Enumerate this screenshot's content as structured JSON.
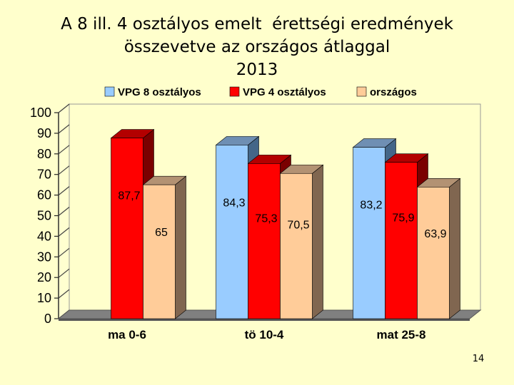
{
  "slide": {
    "title_lines": [
      "A 8 ill. 4 osztályos emelt  érettségi eredmények",
      "összevetve az országos átlaggal",
      "2013"
    ],
    "page_number": "14"
  },
  "chart_data": {
    "type": "bar",
    "categories": [
      "ma 0-6",
      "tö 10-4",
      "mat 25-8"
    ],
    "series": [
      {
        "name": "VPG 8 osztályos",
        "values": [
          null,
          84.3,
          83.2
        ],
        "labels": [
          "",
          "84,3",
          "83,2"
        ],
        "color": "#99ccff",
        "side": "#446688",
        "top": "#6f8fb3"
      },
      {
        "name": "VPG 4 osztályos",
        "values": [
          87.7,
          75.3,
          75.9
        ],
        "labels": [
          "87,7",
          "75,3",
          "75,9"
        ],
        "color": "#ff0000",
        "side": "#7a0000",
        "top": "#b30000"
      },
      {
        "name": "országos",
        "values": [
          65,
          70.5,
          63.9
        ],
        "labels": [
          "65",
          "70,5",
          "63,9"
        ],
        "color": "#ffcc99",
        "side": "#806650",
        "top": "#b39273"
      }
    ],
    "yticks": [
      "0",
      "10",
      "20",
      "30",
      "40",
      "50",
      "60",
      "70",
      "80",
      "90",
      "100"
    ],
    "ylim": [
      0,
      100
    ],
    "legend_position": "top",
    "grid": false
  }
}
